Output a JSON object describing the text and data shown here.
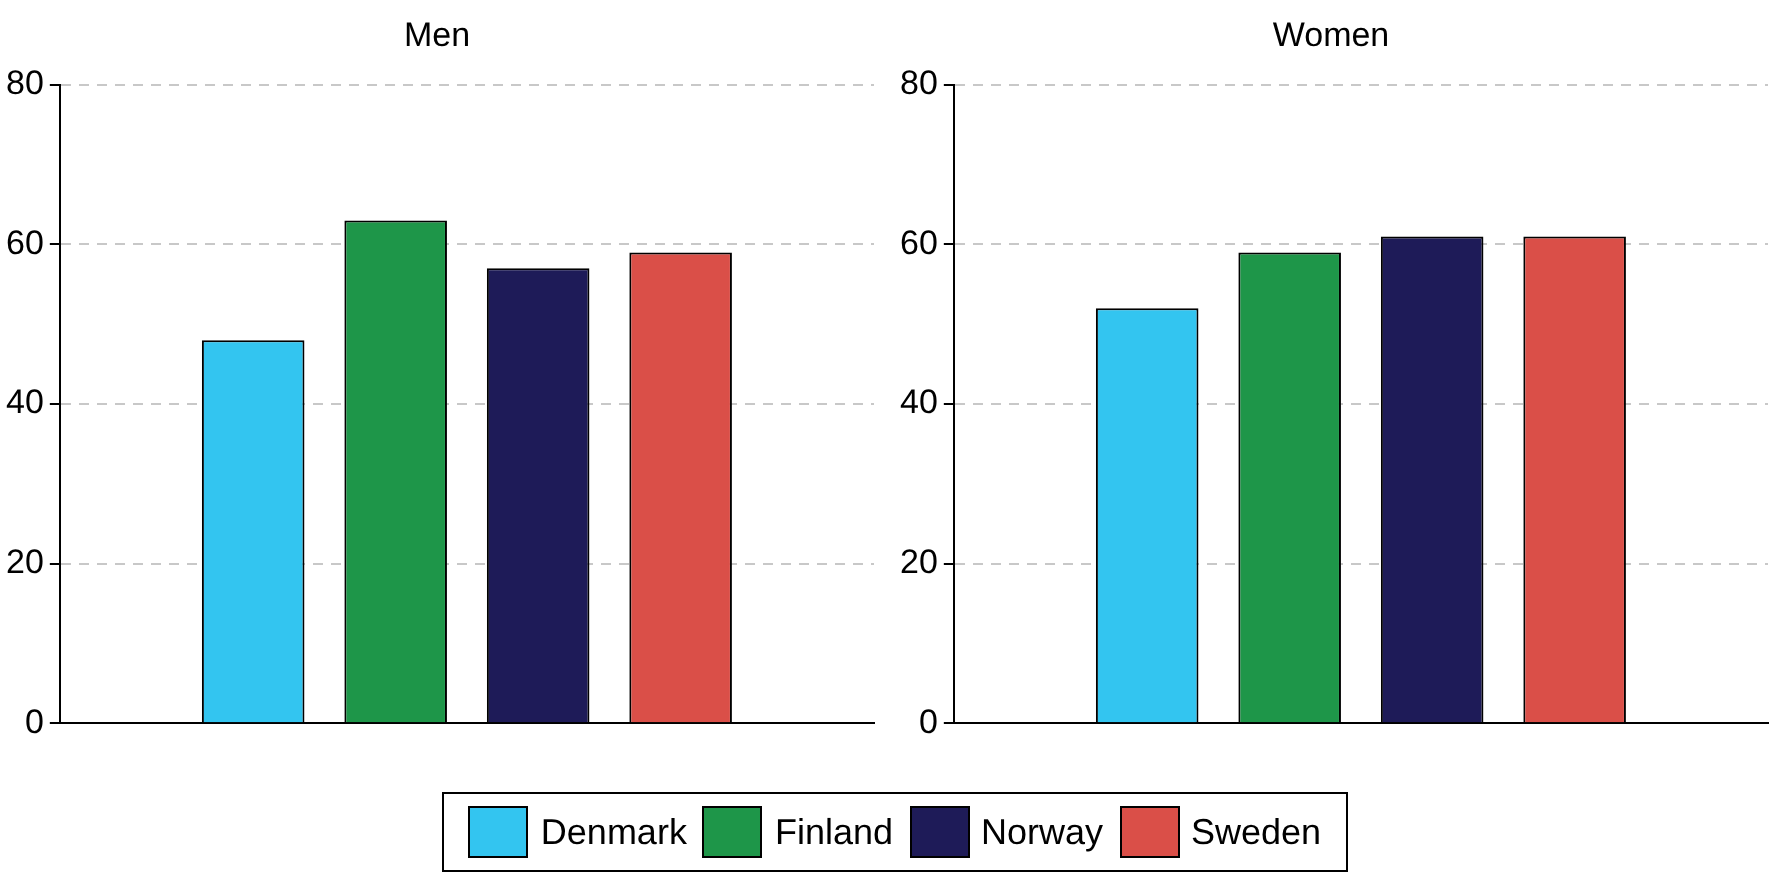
{
  "chart_data": [
    {
      "type": "bar",
      "title": "Men",
      "categories": [
        null
      ],
      "series": [
        {
          "name": "Denmark",
          "color": "#33c5f0",
          "values": [
            48
          ]
        },
        {
          "name": "Finland",
          "color": "#1e9649",
          "values": [
            63
          ]
        },
        {
          "name": "Norway",
          "color": "#1e1b58",
          "values": [
            57
          ]
        },
        {
          "name": "Sweden",
          "color": "#da4f48",
          "values": [
            59
          ]
        }
      ],
      "ylim": [
        0,
        80
      ],
      "yticks": [
        0,
        20,
        40,
        60,
        80
      ],
      "grid": "y",
      "legend": "bottom"
    },
    {
      "type": "bar",
      "title": "Women",
      "categories": [
        null
      ],
      "series": [
        {
          "color": "#33c5f0",
          "values": [
            52
          ]
        },
        {
          "color": "#1e9649",
          "values": [
            59
          ]
        },
        {
          "color": "#1e1b58",
          "values": [
            61
          ]
        },
        {
          "color": "#da4f48",
          "values": [
            61
          ]
        }
      ],
      "ylim": [
        0,
        80
      ],
      "yticks": [
        0,
        20,
        40,
        60,
        80
      ],
      "grid": "y"
    }
  ]
}
